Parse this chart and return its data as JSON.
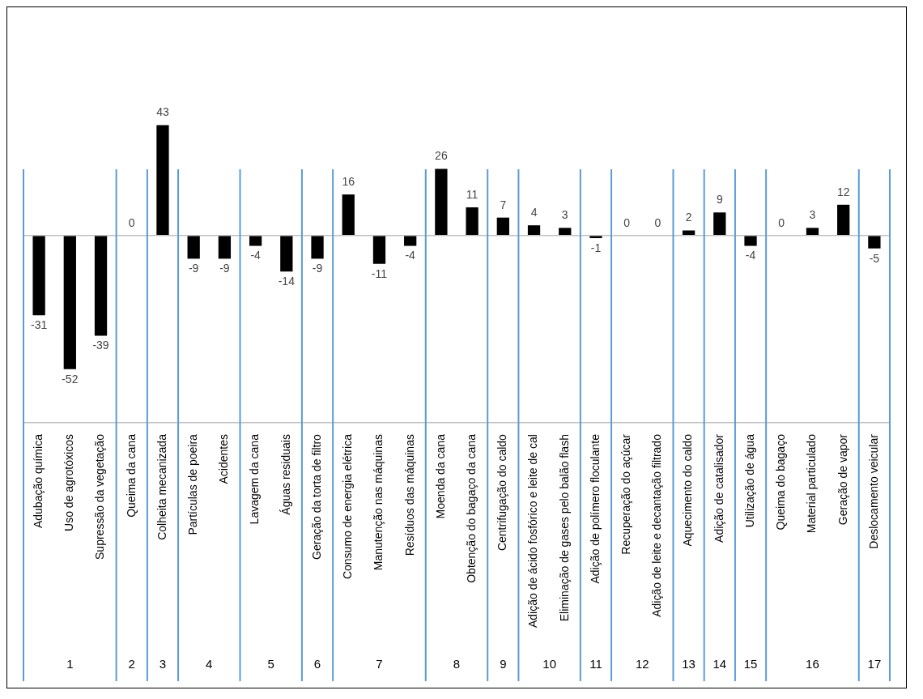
{
  "chart_data": {
    "type": "bar",
    "categories": [
      "Adubação química",
      "Uso de agrotóxicos",
      "Supressão da vegetação",
      "Queima da cana",
      "Colheita mecanizada",
      "Partículas de poeira",
      "Acidentes",
      "Lavagem da cana",
      "Águas residuais",
      "Geração da torta de filtro",
      "Consumo de energia elétrica",
      "Manutenção nas máquinas",
      "Resíduos das máquinas",
      "Moenda da cana",
      "Obtenção do bagaço da cana",
      "Centrifugação do caldo",
      "Adição de ácido fosfórico e leite de cal",
      "Eliminação de gases pelo balão flash",
      "Adição de polímero floculante",
      "Recuperação do açúcar",
      "Adição de leite e decantação filtrado",
      "Aquecimento do caldo",
      "Adição de catalisador",
      "Utilização de água",
      "Queima do bagaço",
      "Material particulado",
      "Geração de vapor",
      "Deslocamento veicular"
    ],
    "values": [
      -31,
      -52,
      -39,
      0,
      43,
      -9,
      -9,
      -4,
      -14,
      -9,
      16,
      -11,
      -4,
      26,
      11,
      7,
      4,
      3,
      -1,
      0,
      0,
      2,
      9,
      -4,
      0,
      3,
      12,
      -5
    ],
    "color": "#000000",
    "data_labels": true,
    "grid": false,
    "legend": false,
    "annotations": [
      "1",
      "2",
      "3",
      "4",
      "5",
      "6",
      "7",
      "8",
      "9",
      "10",
      "11",
      "12",
      "13",
      "14",
      "15",
      "16",
      "17"
    ]
  }
}
